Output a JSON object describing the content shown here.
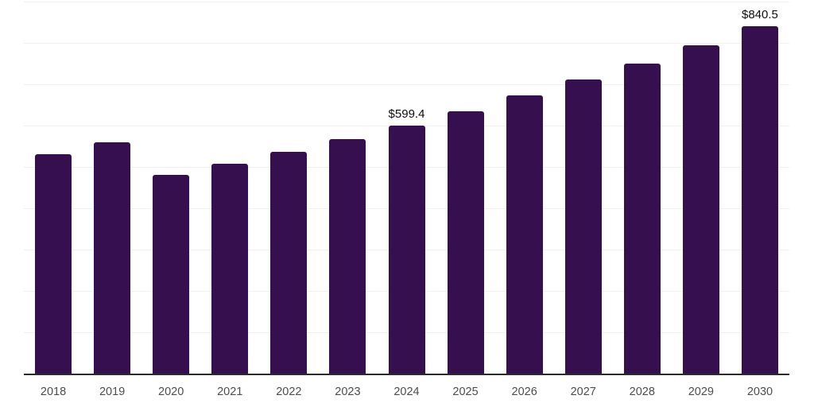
{
  "chart_data": {
    "type": "bar",
    "title": "",
    "xlabel": "",
    "ylabel": "",
    "categories": [
      "2018",
      "2019",
      "2020",
      "2021",
      "2022",
      "2023",
      "2024",
      "2025",
      "2026",
      "2027",
      "2028",
      "2029",
      "2030"
    ],
    "values": [
      530,
      560,
      481,
      507,
      537,
      568,
      599.4,
      634,
      673,
      711,
      750,
      795,
      840.5
    ],
    "data_labels": [
      "",
      "",
      "",
      "",
      "",
      "",
      "$599.4",
      "",
      "",
      "",
      "",
      "",
      "$840.5"
    ],
    "ylim": [
      0,
      900
    ],
    "gridline_interval": 100,
    "grid": "horizontal-only",
    "legend": "none",
    "y_tick_labels_visible": false,
    "colors": {
      "bar": "#36104E",
      "axis_line": "#2b2b2b",
      "gridline": "#f1f1f1",
      "data_label": "#0d0d0d",
      "x_tick_label": "#4d4d4d",
      "background": "#ffffff"
    }
  }
}
